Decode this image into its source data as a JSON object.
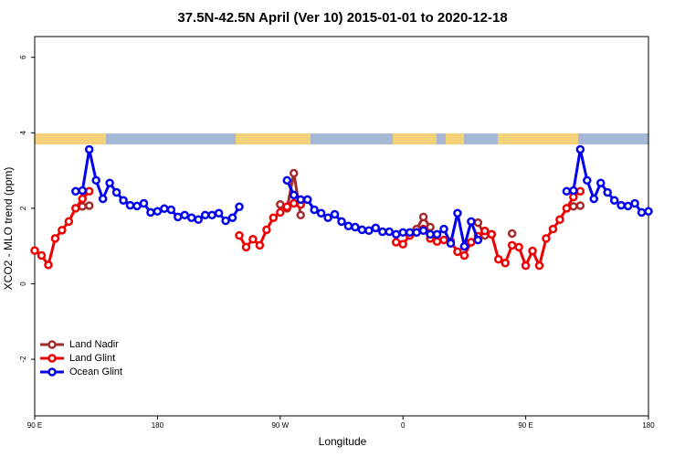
{
  "chart_data": {
    "type": "line",
    "title": "37.5N-42.5N April (Ver 10)   2015-01-01 to 2020-12-18",
    "xlabel": "Longitude",
    "ylabel": "XCO2 - MLO trend (ppm)",
    "xlim": [
      90,
      540
    ],
    "ylim": [
      -3.5,
      6.55
    ],
    "xticks": [
      {
        "value": 90,
        "label": "90 E"
      },
      180,
      {
        "value": 270,
        "label": "90 W"
      },
      {
        "value": 360,
        "label": "0"
      },
      {
        "value": 450,
        "label": "90 E"
      },
      {
        "value": 540,
        "label": "180"
      }
    ],
    "yticks": [
      -2,
      0,
      2,
      4,
      6
    ],
    "legend": "bottom-left",
    "series": [
      {
        "name": "Land Nadir",
        "color": "#a52a2a",
        "x": [
          125,
          130,
          135,
          270,
          275,
          280,
          285,
          290,
          370,
          375,
          380,
          385,
          415,
          420,
          425,
          430,
          440,
          445,
          485,
          490
        ],
        "values": [
          2.05,
          2.07,
          null,
          2.1,
          2.0,
          2.93,
          1.82,
          null,
          1.45,
          1.77,
          1.5,
          null,
          1.62,
          1.28,
          1.31,
          null,
          1.33,
          null,
          2.05,
          2.07
        ]
      },
      {
        "name": "Land Glint",
        "color": "#ee0000",
        "x": [
          90,
          95,
          100,
          105,
          110,
          115,
          120,
          125,
          130,
          135,
          240,
          245,
          250,
          255,
          260,
          265,
          270,
          275,
          280,
          285,
          290,
          295,
          355,
          360,
          365,
          370,
          375,
          380,
          385,
          390,
          395,
          400,
          405,
          410,
          415,
          420,
          425,
          430,
          435,
          440,
          445,
          450,
          455,
          460,
          465,
          470,
          475,
          480,
          485,
          490
        ],
        "values": [
          0.88,
          0.75,
          0.5,
          1.2,
          1.42,
          1.65,
          2.0,
          2.25,
          2.45,
          null,
          1.28,
          0.97,
          1.18,
          1.02,
          1.43,
          1.75,
          1.89,
          2.04,
          2.13,
          2.1,
          2.23,
          null,
          1.1,
          1.05,
          1.28,
          1.36,
          1.45,
          1.2,
          1.12,
          1.16,
          1.12,
          0.85,
          0.75,
          1.1,
          1.26,
          1.4,
          1.31,
          0.65,
          0.55,
          1.02,
          0.97,
          0.48,
          0.87,
          0.48,
          1.2,
          1.45,
          1.7,
          2.0,
          2.3,
          2.45
        ]
      },
      {
        "name": "Ocean Glint",
        "color": "#0000ee",
        "x": [
          120,
          125,
          130,
          135,
          140,
          145,
          150,
          155,
          160,
          165,
          170,
          175,
          180,
          185,
          190,
          195,
          200,
          205,
          210,
          215,
          220,
          225,
          230,
          235,
          240,
          245,
          275,
          280,
          285,
          290,
          295,
          300,
          305,
          310,
          315,
          320,
          325,
          330,
          335,
          340,
          345,
          350,
          355,
          360,
          365,
          370,
          375,
          380,
          385,
          390,
          395,
          400,
          405,
          410,
          415,
          420,
          480,
          485,
          490,
          495,
          500,
          505,
          510,
          515,
          520,
          525,
          530,
          535,
          540
        ],
        "values": [
          2.45,
          2.47,
          3.56,
          2.74,
          2.25,
          2.67,
          2.42,
          2.21,
          2.08,
          2.06,
          2.13,
          1.89,
          1.92,
          1.99,
          1.96,
          1.77,
          1.82,
          1.75,
          1.7,
          1.82,
          1.82,
          1.87,
          1.67,
          1.75,
          2.04,
          null,
          2.74,
          2.35,
          2.23,
          2.23,
          1.96,
          1.87,
          1.75,
          1.84,
          1.65,
          1.53,
          1.5,
          1.43,
          1.41,
          1.48,
          1.38,
          1.38,
          1.31,
          1.36,
          1.36,
          1.36,
          1.41,
          1.31,
          1.31,
          1.45,
          1.07,
          1.87,
          0.99,
          1.65,
          1.16,
          null,
          2.45,
          2.47,
          3.56,
          2.74,
          2.25,
          2.67,
          2.42,
          2.21,
          2.08,
          2.06,
          2.13,
          1.89,
          1.92
        ]
      }
    ]
  }
}
